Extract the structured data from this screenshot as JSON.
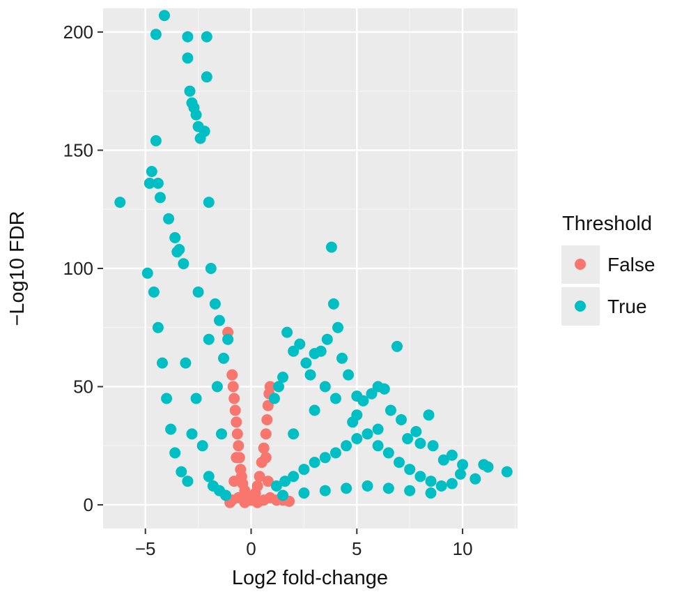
{
  "chart_data": {
    "type": "scatter",
    "title": "",
    "xlabel": "Log2 fold-change",
    "ylabel": "−Log10 FDR",
    "xlim": [
      -7,
      12.6
    ],
    "ylim": [
      -10,
      210
    ],
    "x_ticks": [
      -5,
      0,
      5,
      10
    ],
    "y_ticks": [
      0,
      50,
      100,
      150,
      200
    ],
    "x_tick_labels": [
      "−5",
      "0",
      "5",
      "10"
    ],
    "y_tick_labels": [
      "0",
      "50",
      "100",
      "150",
      "200"
    ],
    "grid": true,
    "panel_background": "#EBEBEB",
    "legend": {
      "title": "Threshold",
      "placement": "right",
      "entries": [
        {
          "label": "False",
          "color": "#F8766D"
        },
        {
          "label": "True",
          "color": "#00BFC4"
        }
      ]
    },
    "series": [
      {
        "name": "False",
        "color": "#F8766D",
        "points": [
          [
            -1.1,
            73
          ],
          [
            -0.9,
            55
          ],
          [
            -0.85,
            50
          ],
          [
            -0.8,
            45
          ],
          [
            -0.75,
            40
          ],
          [
            -0.7,
            35
          ],
          [
            -0.65,
            30
          ],
          [
            -0.6,
            25
          ],
          [
            -0.55,
            20
          ],
          [
            -0.5,
            15
          ],
          [
            -0.45,
            12
          ],
          [
            -0.4,
            9
          ],
          [
            -0.3,
            6
          ],
          [
            -0.2,
            4
          ],
          [
            -0.1,
            3
          ],
          [
            0.0,
            2
          ],
          [
            0.1,
            3
          ],
          [
            0.2,
            5
          ],
          [
            0.3,
            8
          ],
          [
            0.4,
            12
          ],
          [
            0.5,
            18
          ],
          [
            0.6,
            24
          ],
          [
            0.7,
            30
          ],
          [
            0.75,
            36
          ],
          [
            0.8,
            42
          ],
          [
            0.85,
            47
          ],
          [
            0.9,
            50
          ],
          [
            -0.9,
            2
          ],
          [
            -0.6,
            3
          ],
          [
            -0.3,
            1
          ],
          [
            0.3,
            1
          ],
          [
            0.6,
            2
          ],
          [
            0.9,
            3
          ],
          [
            1.2,
            2
          ],
          [
            1.5,
            2
          ],
          [
            1.8,
            1.5
          ],
          [
            -1.0,
            1
          ],
          [
            -0.8,
            10
          ],
          [
            0.8,
            10
          ],
          [
            -0.7,
            20
          ],
          [
            0.7,
            20
          ]
        ]
      },
      {
        "name": "True",
        "color": "#00BFC4",
        "points": [
          [
            -6.2,
            128
          ],
          [
            -4.9,
            98
          ],
          [
            -4.8,
            136
          ],
          [
            -4.7,
            141
          ],
          [
            -4.5,
            154
          ],
          [
            -4.4,
            136
          ],
          [
            -4.3,
            130
          ],
          [
            -4.1,
            207
          ],
          [
            -4.5,
            199
          ],
          [
            -3.9,
            121
          ],
          [
            -3.6,
            113
          ],
          [
            -3.5,
            107
          ],
          [
            -3.4,
            108
          ],
          [
            -3.2,
            102
          ],
          [
            -3.0,
            198
          ],
          [
            -3.0,
            189
          ],
          [
            -2.9,
            175
          ],
          [
            -2.8,
            170
          ],
          [
            -2.7,
            168
          ],
          [
            -2.6,
            165
          ],
          [
            -2.5,
            160
          ],
          [
            -2.4,
            155
          ],
          [
            -2.2,
            158
          ],
          [
            -2.1,
            198
          ],
          [
            -2.1,
            181
          ],
          [
            -2.0,
            128
          ],
          [
            -1.9,
            100
          ],
          [
            -1.7,
            85
          ],
          [
            -1.5,
            78
          ],
          [
            -1.3,
            62
          ],
          [
            -1.1,
            70
          ],
          [
            -4.6,
            90
          ],
          [
            -4.4,
            75
          ],
          [
            -4.2,
            60
          ],
          [
            -4.0,
            45
          ],
          [
            -3.8,
            32
          ],
          [
            -3.6,
            22
          ],
          [
            -3.3,
            14
          ],
          [
            -3.0,
            10
          ],
          [
            -2.8,
            30
          ],
          [
            -2.6,
            45
          ],
          [
            -2.3,
            25
          ],
          [
            -2.0,
            12
          ],
          [
            -1.8,
            8
          ],
          [
            -1.5,
            6
          ],
          [
            -1.2,
            4
          ],
          [
            -3.1,
            60
          ],
          [
            -2.5,
            90
          ],
          [
            -2.0,
            70
          ],
          [
            -1.6,
            50
          ],
          [
            -1.4,
            30
          ],
          [
            1.1,
            45
          ],
          [
            1.3,
            50
          ],
          [
            1.5,
            54
          ],
          [
            1.7,
            73
          ],
          [
            2.0,
            65
          ],
          [
            2.3,
            68
          ],
          [
            2.6,
            60
          ],
          [
            3.0,
            64
          ],
          [
            3.3,
            65
          ],
          [
            3.6,
            70
          ],
          [
            3.8,
            109
          ],
          [
            3.9,
            85
          ],
          [
            4.1,
            75
          ],
          [
            4.3,
            62
          ],
          [
            4.6,
            55
          ],
          [
            5.0,
            46
          ],
          [
            5.3,
            44
          ],
          [
            5.7,
            47
          ],
          [
            6.0,
            50
          ],
          [
            6.3,
            49
          ],
          [
            6.6,
            40
          ],
          [
            6.9,
            67
          ],
          [
            7.1,
            36
          ],
          [
            7.4,
            28
          ],
          [
            7.8,
            31
          ],
          [
            8.0,
            26
          ],
          [
            8.4,
            38
          ],
          [
            8.6,
            25
          ],
          [
            9.1,
            19
          ],
          [
            9.5,
            21
          ],
          [
            9.9,
            13
          ],
          [
            10.0,
            17
          ],
          [
            10.6,
            11
          ],
          [
            11.0,
            17
          ],
          [
            11.2,
            16
          ],
          [
            12.1,
            14
          ],
          [
            1.2,
            8
          ],
          [
            1.6,
            10
          ],
          [
            2.0,
            12
          ],
          [
            2.5,
            15
          ],
          [
            3.0,
            18
          ],
          [
            3.5,
            20
          ],
          [
            4.0,
            22
          ],
          [
            4.5,
            25
          ],
          [
            5.0,
            28
          ],
          [
            5.5,
            30
          ],
          [
            6.0,
            32
          ],
          [
            6.5,
            22
          ],
          [
            7.0,
            18
          ],
          [
            7.5,
            15
          ],
          [
            8.0,
            12
          ],
          [
            8.5,
            10
          ],
          [
            9.0,
            8
          ],
          [
            9.5,
            9
          ],
          [
            1.5,
            4
          ],
          [
            2.5,
            5
          ],
          [
            3.5,
            6
          ],
          [
            4.5,
            7
          ],
          [
            5.5,
            8
          ],
          [
            6.5,
            7
          ],
          [
            7.5,
            6
          ],
          [
            8.5,
            5
          ],
          [
            2.0,
            30
          ],
          [
            3.0,
            40
          ],
          [
            4.0,
            45
          ],
          [
            5.0,
            38
          ],
          [
            6.0,
            25
          ],
          [
            2.8,
            55
          ],
          [
            3.5,
            50
          ],
          [
            4.8,
            35
          ]
        ]
      }
    ]
  }
}
